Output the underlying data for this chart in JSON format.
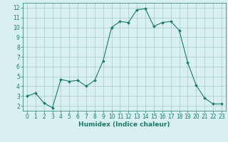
{
  "x": [
    0,
    1,
    2,
    3,
    4,
    5,
    6,
    7,
    8,
    9,
    10,
    11,
    12,
    13,
    14,
    15,
    16,
    17,
    18,
    19,
    20,
    21,
    22,
    23
  ],
  "y": [
    3.0,
    3.3,
    2.3,
    1.8,
    4.7,
    4.5,
    4.6,
    4.0,
    4.6,
    6.6,
    10.0,
    10.6,
    10.5,
    11.8,
    11.9,
    10.1,
    10.5,
    10.6,
    9.7,
    6.4,
    4.1,
    2.8,
    2.2,
    2.2
  ],
  "line_color": "#1a7a6a",
  "marker": "D",
  "marker_size": 2,
  "bg_color": "#d8f0f0",
  "grid_color": "#a8c8c8",
  "xlabel": "Humidex (Indice chaleur)",
  "ylim": [
    1.5,
    12.5
  ],
  "xlim": [
    -0.5,
    23.5
  ],
  "yticks": [
    2,
    3,
    4,
    5,
    6,
    7,
    8,
    9,
    10,
    11,
    12
  ],
  "xticks": [
    0,
    1,
    2,
    3,
    4,
    5,
    6,
    7,
    8,
    9,
    10,
    11,
    12,
    13,
    14,
    15,
    16,
    17,
    18,
    19,
    20,
    21,
    22,
    23
  ],
  "tick_color": "#1a7a6a",
  "spine_color": "#1a7a6a",
  "label_fontsize": 6,
  "xlabel_fontsize": 6.5,
  "tick_fontsize": 5.5
}
